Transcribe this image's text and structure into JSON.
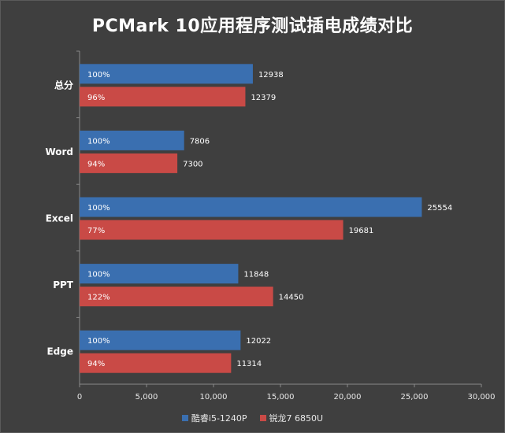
{
  "chart_data": {
    "type": "bar",
    "orientation": "horizontal",
    "title": "PCMark 10应用程序测试插电成绩对比",
    "categories": [
      "总分",
      "Word",
      "Excel",
      "PPT",
      "Edge"
    ],
    "series": [
      {
        "name": "酷睿i5-1240P",
        "color": "#3a6fb0",
        "values": [
          12938,
          7806,
          25554,
          11848,
          12022
        ],
        "percent_labels": [
          "100%",
          "100%",
          "100%",
          "100%",
          "100%"
        ]
      },
      {
        "name": "锐龙7 6850U",
        "color": "#c94a46",
        "values": [
          12379,
          7300,
          19681,
          14450,
          11314
        ],
        "percent_labels": [
          "96%",
          "94%",
          "77%",
          "122%",
          "94%"
        ]
      }
    ],
    "xlim": [
      0,
      30000
    ],
    "xticks": [
      0,
      5000,
      10000,
      15000,
      20000,
      25000,
      30000
    ],
    "xtick_labels": [
      "0",
      "5,000",
      "10,000",
      "15,000",
      "20,000",
      "25,000",
      "30,000"
    ],
    "grid": false,
    "legend_position": "bottom"
  }
}
